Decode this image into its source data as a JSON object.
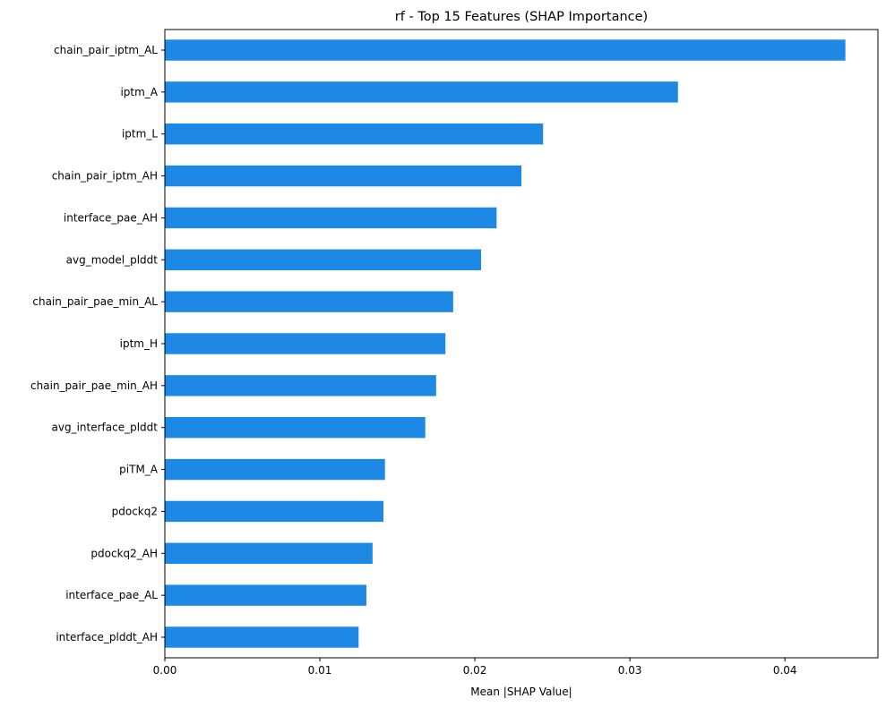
{
  "chart_data": {
    "type": "bar",
    "orientation": "horizontal",
    "title": "rf - Top 15 Features (SHAP Importance)",
    "xlabel": "Mean |SHAP Value|",
    "ylabel": "",
    "xlim": [
      0,
      0.046
    ],
    "xticks": [
      0.0,
      0.01,
      0.02,
      0.03,
      0.04
    ],
    "xtick_labels": [
      "0.00",
      "0.01",
      "0.02",
      "0.03",
      "0.04"
    ],
    "bar_color": "#1e88e5",
    "grid": false,
    "categories": [
      "chain_pair_iptm_AL",
      "iptm_A",
      "iptm_L",
      "chain_pair_iptm_AH",
      "interface_pae_AH",
      "avg_model_plddt",
      "chain_pair_pae_min_AL",
      "iptm_H",
      "chain_pair_pae_min_AH",
      "avg_interface_plddt",
      "piTM_A",
      "pdockq2",
      "pdockq2_AH",
      "interface_pae_AL",
      "interface_plddt_AH"
    ],
    "values": [
      0.0439,
      0.0331,
      0.0244,
      0.023,
      0.0214,
      0.0204,
      0.0186,
      0.0181,
      0.0175,
      0.0168,
      0.0142,
      0.0141,
      0.0134,
      0.013,
      0.0125
    ]
  }
}
